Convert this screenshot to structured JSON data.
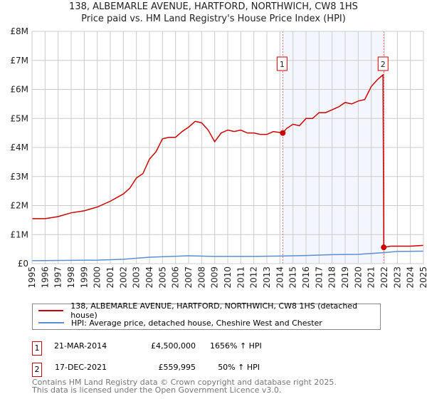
{
  "chart_data": {
    "type": "line",
    "title": "138, ALBEMARLE AVENUE, HARTFORD, NORTHWICH, CW8 1HS",
    "subtitle": "Price paid vs. HM Land Registry's House Price Index (HPI)",
    "xlim": [
      1995,
      2025
    ],
    "ylim": [
      0,
      8000000
    ],
    "x_ticks": [
      "1995",
      "1996",
      "1997",
      "1998",
      "1999",
      "2000",
      "2001",
      "2002",
      "2003",
      "2004",
      "2005",
      "2006",
      "2007",
      "2008",
      "2009",
      "2010",
      "2011",
      "2012",
      "2013",
      "2014",
      "2015",
      "2016",
      "2017",
      "2018",
      "2019",
      "2020",
      "2021",
      "2022",
      "2023",
      "2024",
      "2025"
    ],
    "y_ticks": [
      {
        "v": 0,
        "label": "£0"
      },
      {
        "v": 1000000,
        "label": "£1M"
      },
      {
        "v": 2000000,
        "label": "£2M"
      },
      {
        "v": 3000000,
        "label": "£3M"
      },
      {
        "v": 4000000,
        "label": "£4M"
      },
      {
        "v": 5000000,
        "label": "£5M"
      },
      {
        "v": 6000000,
        "label": "£6M"
      },
      {
        "v": 7000000,
        "label": "£7M"
      },
      {
        "v": 8000000,
        "label": "£8M"
      }
    ],
    "grid": true,
    "shaded_range": [
      2014.22,
      2021.96
    ],
    "series": [
      {
        "name": "138, ALBEMARLE AVENUE, HARTFORD, NORTHWICH, CW8 1HS (detached house)",
        "color": "#cc0000",
        "x": [
          1995,
          1996,
          1997,
          1998,
          1999,
          2000,
          2001,
          2002,
          2002.5,
          2003,
          2003.5,
          2004,
          2004.5,
          2005,
          2005.5,
          2006,
          2006.5,
          2007,
          2007.5,
          2008,
          2008.5,
          2009,
          2009.5,
          2010,
          2010.5,
          2011,
          2011.5,
          2012,
          2012.5,
          2013,
          2013.5,
          2014.22,
          2014.5,
          2015,
          2015.5,
          2016,
          2016.5,
          2017,
          2017.5,
          2018,
          2018.5,
          2019,
          2019.5,
          2020,
          2020.5,
          2021,
          2021.5,
          2021.9,
          2021.96,
          2022.5,
          2023,
          2024,
          2025
        ],
        "y": [
          1550000,
          1550000,
          1620000,
          1750000,
          1820000,
          1950000,
          2150000,
          2400000,
          2600000,
          2950000,
          3100000,
          3600000,
          3850000,
          4300000,
          4350000,
          4350000,
          4550000,
          4700000,
          4900000,
          4850000,
          4600000,
          4200000,
          4500000,
          4600000,
          4550000,
          4600000,
          4500000,
          4500000,
          4450000,
          4450000,
          4550000,
          4500000,
          4650000,
          4800000,
          4750000,
          5000000,
          5000000,
          5200000,
          5200000,
          5300000,
          5400000,
          5550000,
          5500000,
          5600000,
          5650000,
          6100000,
          6350000,
          6500000,
          559995,
          600000,
          600000,
          600000,
          630000
        ]
      },
      {
        "name": "HPI: Average price, detached house, Cheshire West and Chester",
        "color": "#5b8fd0",
        "x": [
          1995,
          2000,
          2002,
          2004,
          2007,
          2009,
          2012,
          2014,
          2016,
          2018,
          2020,
          2021,
          2022,
          2023,
          2025
        ],
        "y": [
          100000,
          120000,
          150000,
          220000,
          270000,
          250000,
          250000,
          260000,
          280000,
          310000,
          320000,
          350000,
          380000,
          420000,
          430000
        ]
      }
    ],
    "annotations": [
      {
        "label": "1",
        "x": 2014.22,
        "y": 4500000
      },
      {
        "label": "2",
        "x": 2021.96,
        "y": 559995
      }
    ]
  },
  "legend": {
    "red_label": "138, ALBEMARLE AVENUE, HARTFORD, NORTHWICH, CW8 1HS (detached house)",
    "blue_label": "HPI: Average price, detached house, Cheshire West and Chester"
  },
  "transactions": [
    {
      "n": "1",
      "date": "21-MAR-2014",
      "price": "£4,500,000",
      "hpi": "1656% ↑ HPI"
    },
    {
      "n": "2",
      "date": "17-DEC-2021",
      "price": "£559,995",
      "hpi": "50% ↑ HPI"
    }
  ],
  "footer": {
    "line1": "Contains HM Land Registry data © Crown copyright and database right 2025.",
    "line2": "This data is licensed under the Open Government Licence v3.0."
  }
}
